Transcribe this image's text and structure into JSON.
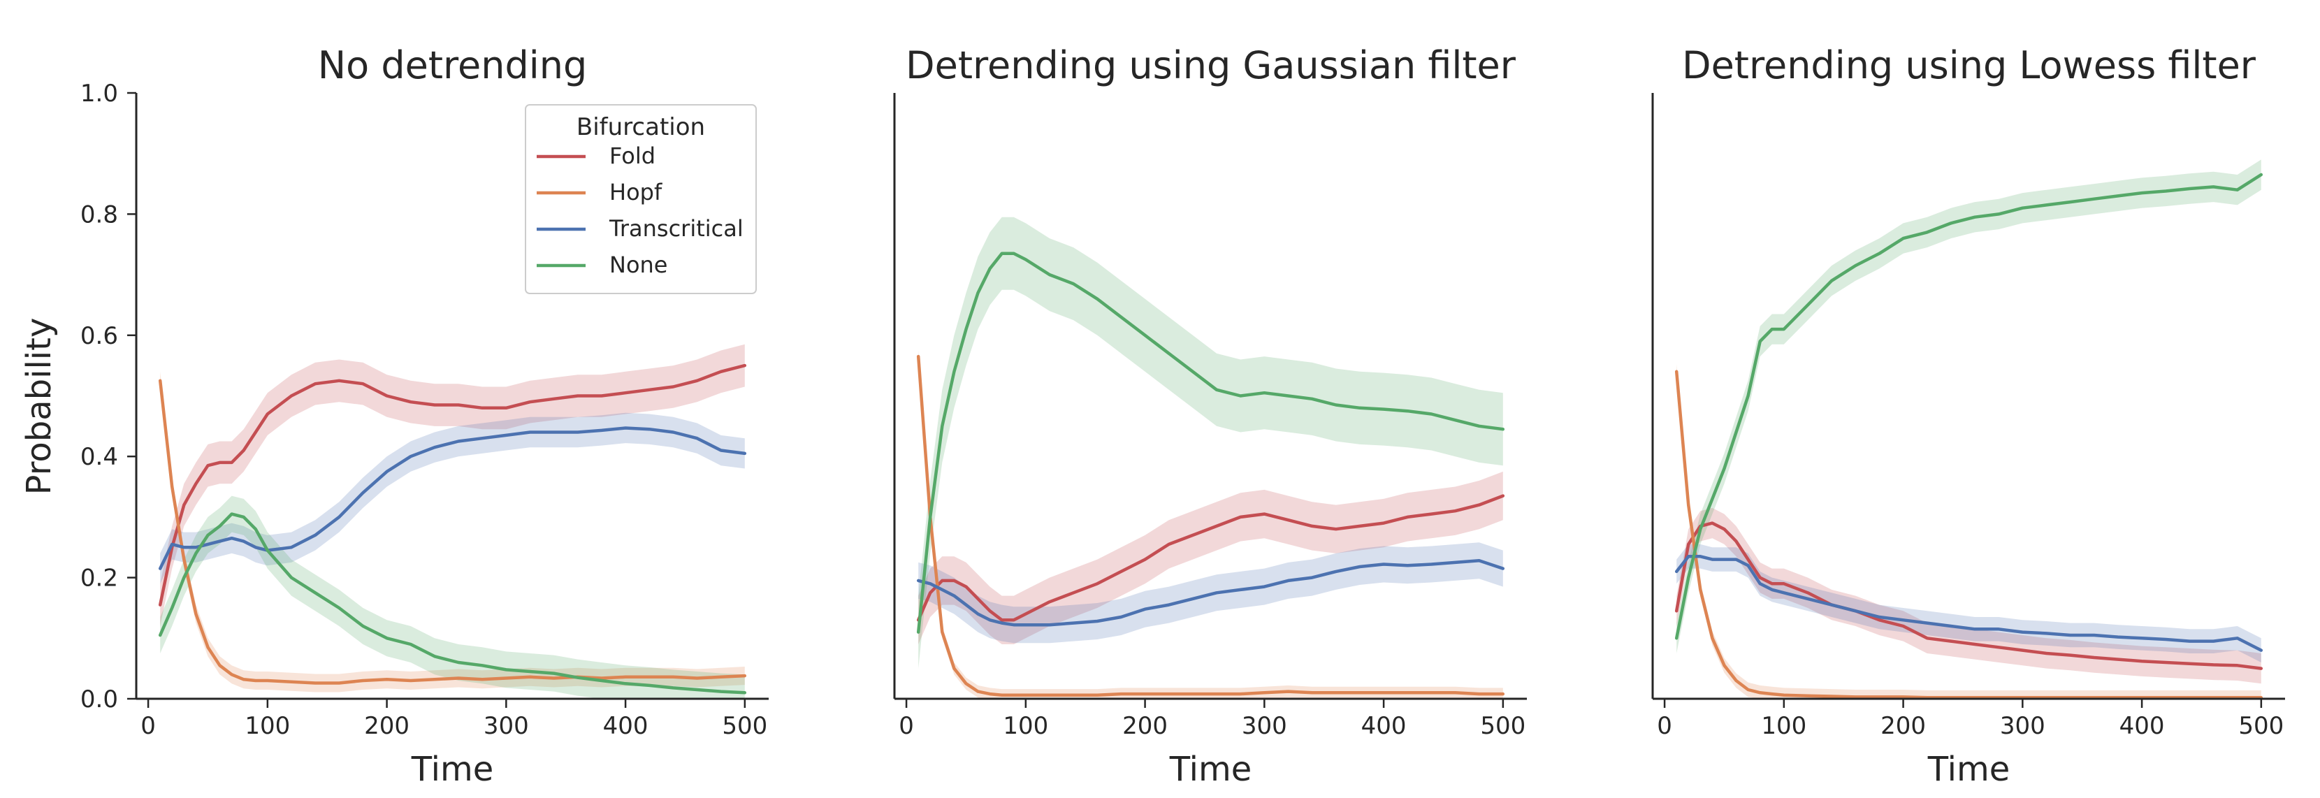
{
  "colors": {
    "Fold": "#c44e52",
    "Hopf": "#dd8452",
    "Transcritical": "#4c72b0",
    "None": "#55a868"
  },
  "legend": {
    "title": "Bifurcation",
    "placement": "top-right of first panel",
    "entries": [
      "Fold",
      "Hopf",
      "Transcritical",
      "None"
    ]
  },
  "chart_data": [
    {
      "type": "line",
      "title": "No detrending",
      "xlabel": "Time",
      "ylabel": "Probability",
      "xlim": [
        -10,
        520
      ],
      "ylim": [
        0,
        1
      ],
      "xticks": [
        0,
        100,
        200,
        300,
        400,
        500
      ],
      "yticks": [
        0.0,
        0.2,
        0.4,
        0.6,
        0.8,
        1.0
      ],
      "ytick_labels": [
        "0.0",
        "0.2",
        "0.4",
        "0.6",
        "0.8",
        "1.0"
      ],
      "show_yticks": true,
      "grid": false,
      "x": [
        10,
        20,
        30,
        40,
        50,
        60,
        70,
        80,
        90,
        100,
        120,
        140,
        160,
        180,
        200,
        220,
        240,
        260,
        280,
        300,
        320,
        340,
        360,
        380,
        400,
        420,
        440,
        460,
        480,
        500
      ],
      "series": [
        {
          "name": "Fold",
          "values": [
            0.155,
            0.25,
            0.32,
            0.355,
            0.385,
            0.39,
            0.39,
            0.41,
            0.44,
            0.47,
            0.5,
            0.52,
            0.525,
            0.52,
            0.5,
            0.49,
            0.485,
            0.485,
            0.48,
            0.48,
            0.49,
            0.495,
            0.5,
            0.5,
            0.505,
            0.51,
            0.515,
            0.525,
            0.54,
            0.55
          ],
          "band": 0.035
        },
        {
          "name": "Hopf",
          "values": [
            0.525,
            0.35,
            0.23,
            0.14,
            0.085,
            0.055,
            0.04,
            0.032,
            0.03,
            0.03,
            0.028,
            0.026,
            0.026,
            0.03,
            0.032,
            0.03,
            0.032,
            0.034,
            0.032,
            0.034,
            0.036,
            0.034,
            0.036,
            0.034,
            0.036,
            0.036,
            0.036,
            0.034,
            0.036,
            0.038
          ],
          "band": 0.015
        },
        {
          "name": "Transcritical",
          "values": [
            0.215,
            0.255,
            0.25,
            0.25,
            0.255,
            0.26,
            0.265,
            0.26,
            0.25,
            0.245,
            0.25,
            0.27,
            0.3,
            0.34,
            0.375,
            0.4,
            0.415,
            0.425,
            0.43,
            0.435,
            0.44,
            0.44,
            0.44,
            0.443,
            0.447,
            0.445,
            0.44,
            0.43,
            0.41,
            0.405
          ],
          "band": 0.025
        },
        {
          "name": "None",
          "values": [
            0.105,
            0.15,
            0.2,
            0.24,
            0.27,
            0.285,
            0.305,
            0.3,
            0.28,
            0.245,
            0.2,
            0.175,
            0.15,
            0.12,
            0.1,
            0.09,
            0.07,
            0.06,
            0.055,
            0.048,
            0.045,
            0.042,
            0.035,
            0.03,
            0.025,
            0.022,
            0.018,
            0.015,
            0.012,
            0.01
          ],
          "band": 0.03
        }
      ]
    },
    {
      "type": "line",
      "title": "Detrending using Gaussian filter",
      "xlabel": "Time",
      "ylabel": "",
      "xlim": [
        -10,
        520
      ],
      "ylim": [
        0,
        1
      ],
      "xticks": [
        0,
        100,
        200,
        300,
        400,
        500
      ],
      "show_yticks": false,
      "grid": false,
      "x": [
        10,
        20,
        30,
        40,
        50,
        60,
        70,
        80,
        90,
        100,
        120,
        140,
        160,
        180,
        200,
        220,
        240,
        260,
        280,
        300,
        320,
        340,
        360,
        380,
        400,
        420,
        440,
        460,
        480,
        500
      ],
      "series": [
        {
          "name": "Fold",
          "values": [
            0.13,
            0.175,
            0.195,
            0.195,
            0.185,
            0.165,
            0.145,
            0.13,
            0.13,
            0.14,
            0.16,
            0.175,
            0.19,
            0.21,
            0.23,
            0.255,
            0.27,
            0.285,
            0.3,
            0.305,
            0.295,
            0.285,
            0.28,
            0.285,
            0.29,
            0.3,
            0.305,
            0.31,
            0.32,
            0.335
          ],
          "band": 0.04
        },
        {
          "name": "Hopf",
          "values": [
            0.565,
            0.3,
            0.11,
            0.05,
            0.025,
            0.012,
            0.008,
            0.006,
            0.006,
            0.006,
            0.006,
            0.006,
            0.006,
            0.008,
            0.008,
            0.008,
            0.008,
            0.008,
            0.008,
            0.01,
            0.012,
            0.01,
            0.01,
            0.01,
            0.01,
            0.01,
            0.01,
            0.01,
            0.008,
            0.008
          ],
          "band": 0.01
        },
        {
          "name": "Transcritical",
          "values": [
            0.195,
            0.19,
            0.18,
            0.17,
            0.155,
            0.14,
            0.13,
            0.125,
            0.122,
            0.122,
            0.122,
            0.125,
            0.128,
            0.135,
            0.148,
            0.155,
            0.165,
            0.175,
            0.18,
            0.185,
            0.195,
            0.2,
            0.21,
            0.218,
            0.222,
            0.22,
            0.222,
            0.225,
            0.228,
            0.215
          ],
          "band": 0.03
        },
        {
          "name": "None",
          "values": [
            0.11,
            0.3,
            0.45,
            0.54,
            0.61,
            0.67,
            0.71,
            0.735,
            0.735,
            0.725,
            0.7,
            0.685,
            0.66,
            0.63,
            0.6,
            0.57,
            0.54,
            0.51,
            0.5,
            0.505,
            0.5,
            0.495,
            0.485,
            0.48,
            0.478,
            0.475,
            0.47,
            0.46,
            0.45,
            0.445
          ],
          "band": 0.06
        }
      ]
    },
    {
      "type": "line",
      "title": "Detrending using Lowess filter",
      "xlabel": "Time",
      "ylabel": "",
      "xlim": [
        -10,
        520
      ],
      "ylim": [
        0,
        1
      ],
      "xticks": [
        0,
        100,
        200,
        300,
        400,
        500
      ],
      "show_yticks": false,
      "grid": false,
      "x": [
        10,
        20,
        30,
        40,
        50,
        60,
        70,
        80,
        90,
        100,
        120,
        140,
        160,
        180,
        200,
        220,
        240,
        260,
        280,
        300,
        320,
        340,
        360,
        380,
        400,
        420,
        440,
        460,
        480,
        500
      ],
      "series": [
        {
          "name": "Fold",
          "values": [
            0.145,
            0.255,
            0.285,
            0.29,
            0.28,
            0.26,
            0.23,
            0.2,
            0.19,
            0.19,
            0.175,
            0.155,
            0.145,
            0.13,
            0.12,
            0.1,
            0.095,
            0.09,
            0.085,
            0.08,
            0.075,
            0.072,
            0.068,
            0.065,
            0.062,
            0.06,
            0.058,
            0.056,
            0.055,
            0.05
          ],
          "band": 0.025
        },
        {
          "name": "Hopf",
          "values": [
            0.54,
            0.32,
            0.18,
            0.1,
            0.055,
            0.03,
            0.015,
            0.01,
            0.008,
            0.006,
            0.005,
            0.004,
            0.003,
            0.003,
            0.003,
            0.002,
            0.002,
            0.002,
            0.002,
            0.002,
            0.002,
            0.002,
            0.002,
            0.002,
            0.002,
            0.002,
            0.002,
            0.002,
            0.002,
            0.002
          ],
          "band": 0.012
        },
        {
          "name": "Transcritical",
          "values": [
            0.21,
            0.235,
            0.235,
            0.23,
            0.23,
            0.23,
            0.22,
            0.19,
            0.18,
            0.175,
            0.165,
            0.155,
            0.145,
            0.135,
            0.13,
            0.125,
            0.12,
            0.115,
            0.115,
            0.11,
            0.108,
            0.105,
            0.105,
            0.102,
            0.1,
            0.098,
            0.095,
            0.095,
            0.1,
            0.08
          ],
          "band": 0.02
        },
        {
          "name": "None",
          "values": [
            0.1,
            0.2,
            0.28,
            0.33,
            0.38,
            0.44,
            0.5,
            0.59,
            0.61,
            0.61,
            0.65,
            0.69,
            0.715,
            0.735,
            0.76,
            0.77,
            0.785,
            0.795,
            0.8,
            0.81,
            0.815,
            0.82,
            0.825,
            0.83,
            0.835,
            0.838,
            0.842,
            0.845,
            0.84,
            0.865
          ],
          "band": 0.025
        }
      ]
    }
  ]
}
